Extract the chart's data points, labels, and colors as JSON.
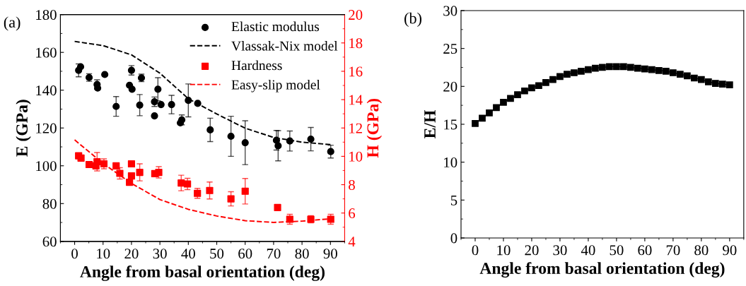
{
  "chart_data": [
    {
      "type": "scatter",
      "xlabel": "Angle from basal orientation (deg)",
      "ylabel": "E (GPa)",
      "y2label": "H (GPa)",
      "annotations": [
        "(a)"
      ],
      "xlim": [
        -5,
        95
      ],
      "xticks": [
        0,
        10,
        20,
        30,
        40,
        50,
        60,
        70,
        80,
        90
      ],
      "ylim": [
        60,
        180
      ],
      "yticks": [
        60,
        80,
        100,
        120,
        140,
        160,
        180
      ],
      "y2lim": [
        4,
        20
      ],
      "y2ticks": [
        4,
        6,
        8,
        10,
        12,
        14,
        16,
        18,
        20
      ],
      "legend": "top right",
      "grid": false,
      "series": [
        {
          "name": "Elastic modulus",
          "type": "scatter",
          "marker": "circle",
          "color": "#000000",
          "x": [
            1.4,
            2.1,
            5.1,
            7.9,
            8.1,
            10.6,
            14.6,
            20,
            19.3,
            20.2,
            23.5,
            22.9,
            28.1,
            28.1,
            29.3,
            30.4,
            34.1,
            40,
            43.3,
            37.7,
            37.2,
            47.7,
            55,
            60,
            71,
            71.6,
            75.7,
            83.1,
            90.1
          ],
          "values": [
            150.5,
            152.4,
            146.7,
            143,
            141.1,
            148.3,
            131.4,
            150.5,
            142.6,
            140.5,
            146.5,
            132.1,
            133.9,
            126.4,
            140.5,
            132.4,
            132.4,
            134.6,
            133,
            124.3,
            122.7,
            119,
            115.6,
            112.2,
            113.5,
            110.6,
            113.1,
            114.1,
            107.5
          ],
          "errors": [
            3.4,
            null,
            2,
            2.5,
            null,
            null,
            5.2,
            2.5,
            null,
            null,
            2,
            5.6,
            2.5,
            null,
            6.1,
            null,
            4.9,
            8.7,
            null,
            2.6,
            null,
            6.2,
            10.6,
            11.6,
            5.2,
            8,
            5.3,
            6.2,
            3.4
          ]
        },
        {
          "name": "Vlassak-Nix model",
          "type": "line",
          "line_style": "dashed",
          "color": "#000000",
          "x": [
            0,
            10,
            20,
            30,
            40,
            50,
            60,
            70,
            80,
            90
          ],
          "values": [
            165.8,
            163.6,
            158.7,
            149,
            135.5,
            127.4,
            119.9,
            115,
            112.5,
            111.2
          ]
        },
        {
          "name": "Hardness",
          "type": "scatter",
          "marker": "square",
          "axis": "y2",
          "color": "#ff0000",
          "x": [
            1.4,
            2.25,
            5.1,
            7.9,
            7.5,
            10.3,
            14.6,
            15.9,
            20,
            20,
            19.3,
            22.9,
            28.2,
            29.6,
            37.5,
            39.7,
            43.2,
            47.5,
            55,
            60,
            71.4,
            75.7,
            83.1,
            90.1
          ],
          "values": [
            10.04,
            9.88,
            9.42,
            9.62,
            9.33,
            9.47,
            9.33,
            8.8,
            9.47,
            8.62,
            8.17,
            8.87,
            8.78,
            8.87,
            8.12,
            8.05,
            7.39,
            7.59,
            7.0,
            7.54,
            6.39,
            5.56,
            5.56,
            5.56
          ],
          "errors": [
            null,
            null,
            null,
            0.65,
            null,
            0.35,
            null,
            0.4,
            null,
            null,
            null,
            0.6,
            null,
            0.4,
            0.55,
            0.4,
            0.35,
            0.6,
            0.5,
            0.9,
            null,
            0.35,
            0.25,
            0.35
          ]
        },
        {
          "name": "Easy-slip model",
          "type": "line",
          "line_style": "dashed",
          "axis": "y2",
          "color": "#ff0000",
          "x": [
            0,
            10,
            20,
            30,
            40,
            50,
            60,
            70,
            80,
            90
          ],
          "values": [
            11.16,
            9.5,
            8.09,
            6.95,
            6.26,
            5.79,
            5.46,
            5.34,
            5.43,
            5.59
          ]
        }
      ]
    },
    {
      "type": "line",
      "marker": "square",
      "xlabel": "Angle from basal orientation (deg)",
      "ylabel": "E/H",
      "annotations": [
        "(b)"
      ],
      "xlim": [
        -5,
        95
      ],
      "xticks": [
        0,
        10,
        20,
        30,
        40,
        50,
        60,
        70,
        80,
        90
      ],
      "ylim": [
        0,
        30
      ],
      "yticks": [
        0,
        5,
        10,
        15,
        20,
        25,
        30
      ],
      "grid": false,
      "legend": false,
      "series": [
        {
          "color": "#000000",
          "x": [
            0,
            2.5,
            5,
            7.5,
            10,
            12.5,
            15,
            17.5,
            20,
            22.5,
            25,
            27.5,
            30,
            32.5,
            35,
            37.5,
            40,
            42.5,
            45,
            47.5,
            50,
            52.5,
            55,
            57.5,
            60,
            62.5,
            65,
            67.5,
            70,
            72.5,
            75,
            77.5,
            80,
            82.5,
            85,
            87.5,
            90
          ],
          "values": [
            15.1,
            15.8,
            16.5,
            17.2,
            17.9,
            18.4,
            18.9,
            19.4,
            19.8,
            20.1,
            20.5,
            20.9,
            21.3,
            21.6,
            21.8,
            22.0,
            22.2,
            22.4,
            22.5,
            22.6,
            22.6,
            22.6,
            22.5,
            22.4,
            22.3,
            22.2,
            22.1,
            22.0,
            21.8,
            21.6,
            21.4,
            21.1,
            20.9,
            20.6,
            20.4,
            20.3,
            20.2
          ]
        }
      ]
    }
  ]
}
